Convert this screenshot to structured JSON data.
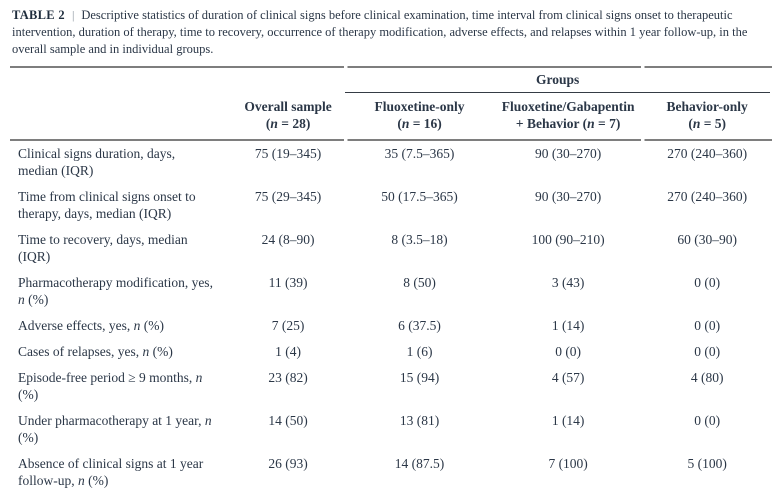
{
  "caption": {
    "tag": "TABLE 2",
    "separator": "|",
    "text": "Descriptive statistics of duration of clinical signs before clinical examination, time interval from clinical signs onset to therapeutic intervention, duration of therapy, time to recovery, occurrence of therapy modification, adverse effects, and relapses within 1 year follow-up, in the overall sample and in individual groups."
  },
  "header": {
    "groups_label": "Groups",
    "columns": [
      {
        "line1": "Overall sample",
        "line2": "(n = 28)"
      },
      {
        "line1": "Fluoxetine-only",
        "line2": "(n = 16)"
      },
      {
        "line1": "Fluoxetine/Gabapentin",
        "line2": "+ Behavior (n = 7)"
      },
      {
        "line1": "Behavior-only",
        "line2": "(n = 5)"
      }
    ]
  },
  "rows": [
    {
      "label": "Clinical signs duration, days, median (IQR)",
      "values": [
        "75 (19–345)",
        "35 (7.5–365)",
        "90 (30–270)",
        "270 (240–360)"
      ]
    },
    {
      "label": "Time from clinical signs onset to therapy, days, median (IQR)",
      "values": [
        "75 (29–345)",
        "50 (17.5–365)",
        "90 (30–270)",
        "270 (240–360)"
      ]
    },
    {
      "label": "Time to recovery, days, median (IQR)",
      "values": [
        "24 (8–90)",
        "8 (3.5–18)",
        "100 (90–210)",
        "60 (30–90)"
      ]
    },
    {
      "label": "Pharmacotherapy modification, yes, n (%)",
      "values": [
        "11 (39)",
        "8 (50)",
        "3 (43)",
        "0 (0)"
      ]
    },
    {
      "label": "Adverse effects, yes, n (%)",
      "values": [
        "7 (25)",
        "6 (37.5)",
        "1 (14)",
        "0 (0)"
      ]
    },
    {
      "label": "Cases of relapses, yes, n (%)",
      "values": [
        "1 (4)",
        "1 (6)",
        "0 (0)",
        "0 (0)"
      ]
    },
    {
      "label": "Episode-free period ≥ 9 months, n (%)",
      "values": [
        "23 (82)",
        "15 (94)",
        "4 (57)",
        "4 (80)"
      ]
    },
    {
      "label": "Under pharmacotherapy at 1 year, n (%)",
      "values": [
        "14 (50)",
        "13 (81)",
        "1 (14)",
        "0 (0)"
      ]
    },
    {
      "label": "Absence of clinical signs at 1 year follow-up, n (%)",
      "values": [
        "26 (93)",
        "14 (87.5)",
        "7 (100)",
        "5 (100)"
      ]
    }
  ]
}
